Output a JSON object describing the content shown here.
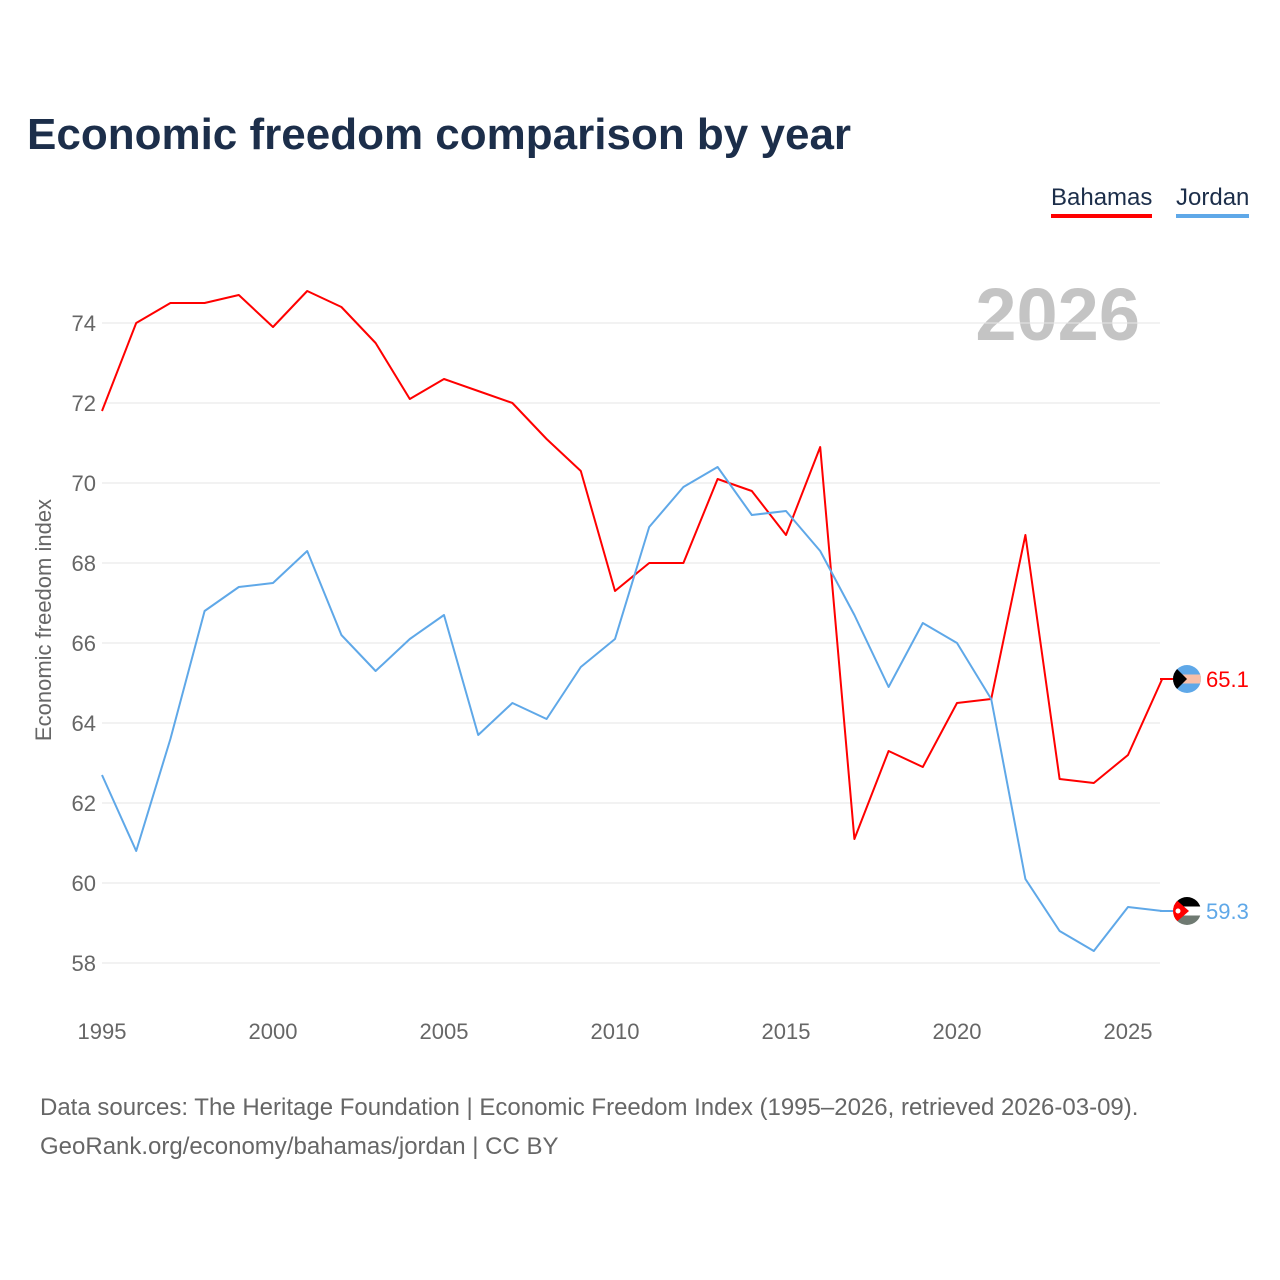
{
  "chart_data": {
    "type": "line",
    "title": "Economic freedom comparison by year",
    "ylabel": "Economic freedom index",
    "xlabel": "",
    "year_label": "2026",
    "ylim": [
      57,
      75.5
    ],
    "xlim": [
      1995,
      2026
    ],
    "yticks": [
      58,
      60,
      62,
      64,
      66,
      68,
      70,
      72,
      74
    ],
    "xticks": [
      1995,
      2000,
      2005,
      2010,
      2015,
      2020,
      2025
    ],
    "grid": true,
    "legend_position": "top-right",
    "x": [
      1995,
      1996,
      1997,
      1998,
      1999,
      2000,
      2001,
      2002,
      2003,
      2004,
      2005,
      2006,
      2007,
      2008,
      2009,
      2010,
      2011,
      2012,
      2013,
      2014,
      2015,
      2016,
      2017,
      2018,
      2019,
      2020,
      2021,
      2022,
      2023,
      2024,
      2025,
      2026
    ],
    "series": [
      {
        "name": "Bahamas",
        "color": "#ff0000",
        "end_label": "65.1",
        "values": [
          71.8,
          74.0,
          74.5,
          74.5,
          74.7,
          73.9,
          74.8,
          74.4,
          73.5,
          72.1,
          72.6,
          72.3,
          72.0,
          71.1,
          70.3,
          67.3,
          68.0,
          68.0,
          70.1,
          69.8,
          68.7,
          70.9,
          61.1,
          63.3,
          62.9,
          64.5,
          64.6,
          68.7,
          62.6,
          62.5,
          63.2,
          65.1
        ]
      },
      {
        "name": "Jordan",
        "color": "#5fa8e8",
        "end_label": "59.3",
        "values": [
          62.7,
          60.8,
          63.6,
          66.8,
          67.4,
          67.5,
          68.3,
          66.2,
          65.3,
          66.1,
          66.7,
          63.7,
          64.5,
          64.1,
          65.4,
          66.1,
          68.9,
          69.9,
          70.4,
          69.2,
          69.3,
          68.3,
          66.7,
          64.9,
          66.5,
          66.0,
          64.6,
          60.1,
          58.8,
          58.3,
          59.4,
          59.3
        ]
      }
    ]
  },
  "source": {
    "line1": "Data sources: The Heritage Foundation | Economic Freedom Index (1995–2026, retrieved 2026-03-09).",
    "line2": "GeoRank.org/economy/bahamas/jordan | CC BY"
  }
}
